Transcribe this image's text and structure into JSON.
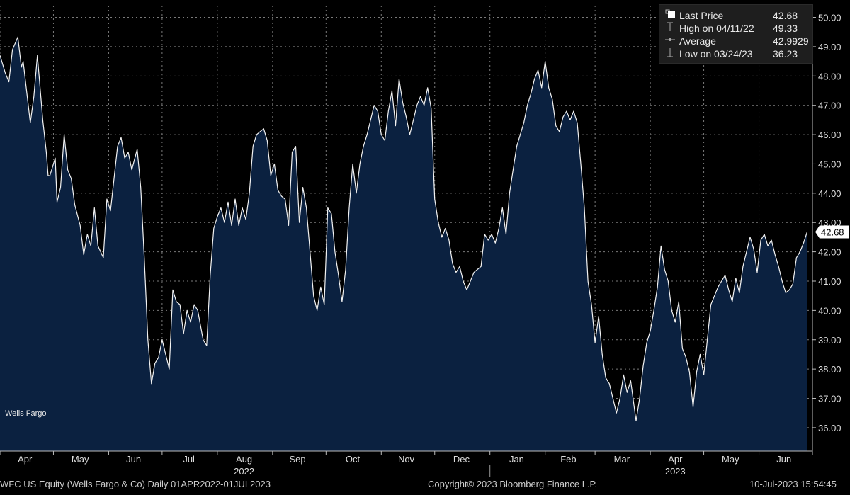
{
  "chart_data": {
    "type": "area",
    "series": [
      {
        "name": "Wells Fargo"
      }
    ],
    "ylim": [
      35.2,
      50.4
    ],
    "yticks": [
      "36.00",
      "37.00",
      "38.00",
      "39.00",
      "40.00",
      "41.00",
      "42.00",
      "43.00",
      "44.00",
      "45.00",
      "46.00",
      "47.00",
      "48.00",
      "49.00",
      "50.00"
    ],
    "xlim": [
      "2022-04-01",
      "2023-07-01"
    ],
    "month_labels": [
      {
        "label": "Apr",
        "date": "2022-04-15"
      },
      {
        "label": "May",
        "date": "2022-05-16"
      },
      {
        "label": "Jun",
        "date": "2022-06-15"
      },
      {
        "label": "Jul",
        "date": "2022-07-16"
      },
      {
        "label": "Aug",
        "date": "2022-08-16"
      },
      {
        "label": "Sep",
        "date": "2022-09-15"
      },
      {
        "label": "Oct",
        "date": "2022-10-16"
      },
      {
        "label": "Nov",
        "date": "2022-11-15"
      },
      {
        "label": "Dec",
        "date": "2022-12-16"
      },
      {
        "label": "Jan",
        "date": "2023-01-16"
      },
      {
        "label": "Feb",
        "date": "2023-02-14"
      },
      {
        "label": "Mar",
        "date": "2023-03-16"
      },
      {
        "label": "Apr",
        "date": "2023-04-15"
      },
      {
        "label": "May",
        "date": "2023-05-16"
      },
      {
        "label": "Jun",
        "date": "2023-06-15"
      }
    ],
    "year_labels": [
      {
        "label": "2022",
        "date": "2022-08-16"
      },
      {
        "label": "2023",
        "date": "2023-04-15"
      }
    ],
    "year_divider": "2023-01-01",
    "points": [
      [
        "2022-04-01",
        48.7
      ],
      [
        "2022-04-04",
        48.1
      ],
      [
        "2022-04-06",
        47.8
      ],
      [
        "2022-04-08",
        48.9
      ],
      [
        "2022-04-11",
        49.33
      ],
      [
        "2022-04-13",
        48.3
      ],
      [
        "2022-04-14",
        48.5
      ],
      [
        "2022-04-18",
        46.4
      ],
      [
        "2022-04-20",
        47.3
      ],
      [
        "2022-04-22",
        48.7
      ],
      [
        "2022-04-25",
        46.5
      ],
      [
        "2022-04-27",
        45.4
      ],
      [
        "2022-04-28",
        44.6
      ],
      [
        "2022-04-29",
        44.6
      ],
      [
        "2022-05-02",
        45.2
      ],
      [
        "2022-05-03",
        43.7
      ],
      [
        "2022-05-05",
        44.2
      ],
      [
        "2022-05-07",
        46.0
      ],
      [
        "2022-05-09",
        44.8
      ],
      [
        "2022-05-11",
        44.5
      ],
      [
        "2022-05-13",
        43.6
      ],
      [
        "2022-05-16",
        42.9
      ],
      [
        "2022-05-18",
        41.9
      ],
      [
        "2022-05-20",
        42.6
      ],
      [
        "2022-05-22",
        42.2
      ],
      [
        "2022-05-24",
        43.5
      ],
      [
        "2022-05-26",
        42.2
      ],
      [
        "2022-05-29",
        41.8
      ],
      [
        "2022-05-31",
        43.8
      ],
      [
        "2022-06-02",
        43.4
      ],
      [
        "2022-06-06",
        45.6
      ],
      [
        "2022-06-08",
        45.9
      ],
      [
        "2022-06-10",
        45.2
      ],
      [
        "2022-06-12",
        45.4
      ],
      [
        "2022-06-14",
        44.8
      ],
      [
        "2022-06-17",
        45.5
      ],
      [
        "2022-06-19",
        44.2
      ],
      [
        "2022-06-21",
        41.8
      ],
      [
        "2022-06-23",
        39.0
      ],
      [
        "2022-06-25",
        37.5
      ],
      [
        "2022-06-27",
        38.2
      ],
      [
        "2022-06-29",
        38.4
      ],
      [
        "2022-07-01",
        39.0
      ],
      [
        "2022-07-03",
        38.5
      ],
      [
        "2022-07-05",
        38.0
      ],
      [
        "2022-07-07",
        40.7
      ],
      [
        "2022-07-09",
        40.3
      ],
      [
        "2022-07-11",
        40.2
      ],
      [
        "2022-07-13",
        39.2
      ],
      [
        "2022-07-15",
        40.0
      ],
      [
        "2022-07-17",
        39.6
      ],
      [
        "2022-07-19",
        40.2
      ],
      [
        "2022-07-21",
        40.0
      ],
      [
        "2022-07-24",
        39.0
      ],
      [
        "2022-07-26",
        38.8
      ],
      [
        "2022-07-28",
        41.2
      ],
      [
        "2022-07-30",
        42.8
      ],
      [
        "2022-08-01",
        43.2
      ],
      [
        "2022-08-03",
        43.5
      ],
      [
        "2022-08-05",
        43.0
      ],
      [
        "2022-08-07",
        43.7
      ],
      [
        "2022-08-09",
        42.9
      ],
      [
        "2022-08-11",
        43.8
      ],
      [
        "2022-08-13",
        42.9
      ],
      [
        "2022-08-15",
        43.5
      ],
      [
        "2022-08-17",
        43.1
      ],
      [
        "2022-08-19",
        44.0
      ],
      [
        "2022-08-21",
        45.6
      ],
      [
        "2022-08-23",
        46.0
      ],
      [
        "2022-08-25",
        46.1
      ],
      [
        "2022-08-27",
        46.2
      ],
      [
        "2022-08-29",
        45.8
      ],
      [
        "2022-08-31",
        44.6
      ],
      [
        "2022-09-02",
        45.0
      ],
      [
        "2022-09-04",
        44.1
      ],
      [
        "2022-09-06",
        43.9
      ],
      [
        "2022-09-08",
        43.8
      ],
      [
        "2022-09-10",
        42.9
      ],
      [
        "2022-09-12",
        45.4
      ],
      [
        "2022-09-14",
        45.6
      ],
      [
        "2022-09-16",
        43.0
      ],
      [
        "2022-09-18",
        44.2
      ],
      [
        "2022-09-20",
        43.5
      ],
      [
        "2022-09-22",
        42.0
      ],
      [
        "2022-09-24",
        40.5
      ],
      [
        "2022-09-26",
        40.0
      ],
      [
        "2022-09-28",
        40.8
      ],
      [
        "2022-09-30",
        40.2
      ],
      [
        "2022-10-02",
        43.5
      ],
      [
        "2022-10-04",
        43.3
      ],
      [
        "2022-10-06",
        42.0
      ],
      [
        "2022-10-08",
        41.2
      ],
      [
        "2022-10-10",
        40.3
      ],
      [
        "2022-10-12",
        41.4
      ],
      [
        "2022-10-14",
        43.5
      ],
      [
        "2022-10-16",
        45.0
      ],
      [
        "2022-10-18",
        44.0
      ],
      [
        "2022-10-20",
        45.0
      ],
      [
        "2022-10-22",
        45.6
      ],
      [
        "2022-10-24",
        46.0
      ],
      [
        "2022-10-26",
        46.5
      ],
      [
        "2022-10-28",
        47.0
      ],
      [
        "2022-10-30",
        46.8
      ],
      [
        "2022-11-01",
        46.0
      ],
      [
        "2022-11-03",
        45.8
      ],
      [
        "2022-11-05",
        46.8
      ],
      [
        "2022-11-07",
        47.5
      ],
      [
        "2022-11-09",
        46.3
      ],
      [
        "2022-11-11",
        47.9
      ],
      [
        "2022-11-13",
        47.1
      ],
      [
        "2022-11-15",
        46.6
      ],
      [
        "2022-11-17",
        46.0
      ],
      [
        "2022-11-19",
        46.5
      ],
      [
        "2022-11-21",
        47.0
      ],
      [
        "2022-11-23",
        47.3
      ],
      [
        "2022-11-25",
        47.0
      ],
      [
        "2022-11-27",
        47.6
      ],
      [
        "2022-11-29",
        46.9
      ],
      [
        "2022-12-01",
        43.8
      ],
      [
        "2022-12-03",
        43.0
      ],
      [
        "2022-12-05",
        42.5
      ],
      [
        "2022-12-07",
        42.8
      ],
      [
        "2022-12-09",
        42.4
      ],
      [
        "2022-12-11",
        41.6
      ],
      [
        "2022-12-13",
        41.3
      ],
      [
        "2022-12-15",
        41.5
      ],
      [
        "2022-12-17",
        41.0
      ],
      [
        "2022-12-19",
        40.7
      ],
      [
        "2022-12-21",
        41.0
      ],
      [
        "2022-12-23",
        41.3
      ],
      [
        "2022-12-27",
        41.5
      ],
      [
        "2022-12-29",
        42.6
      ],
      [
        "2022-12-31",
        42.4
      ],
      [
        "2023-01-02",
        42.6
      ],
      [
        "2023-01-04",
        42.3
      ],
      [
        "2023-01-06",
        42.8
      ],
      [
        "2023-01-08",
        43.5
      ],
      [
        "2023-01-10",
        42.6
      ],
      [
        "2023-01-12",
        44.0
      ],
      [
        "2023-01-14",
        44.8
      ],
      [
        "2023-01-16",
        45.6
      ],
      [
        "2023-01-18",
        46.0
      ],
      [
        "2023-01-20",
        46.4
      ],
      [
        "2023-01-22",
        47.0
      ],
      [
        "2023-01-24",
        47.4
      ],
      [
        "2023-01-26",
        47.9
      ],
      [
        "2023-01-28",
        48.2
      ],
      [
        "2023-01-30",
        47.6
      ],
      [
        "2023-02-01",
        48.5
      ],
      [
        "2023-02-03",
        47.6
      ],
      [
        "2023-02-05",
        47.2
      ],
      [
        "2023-02-07",
        46.3
      ],
      [
        "2023-02-09",
        46.1
      ],
      [
        "2023-02-11",
        46.6
      ],
      [
        "2023-02-13",
        46.8
      ],
      [
        "2023-02-15",
        46.5
      ],
      [
        "2023-02-17",
        46.8
      ],
      [
        "2023-02-19",
        46.4
      ],
      [
        "2023-02-21",
        45.0
      ],
      [
        "2023-02-23",
        43.5
      ],
      [
        "2023-02-25",
        41.0
      ],
      [
        "2023-02-27",
        40.2
      ],
      [
        "2023-03-01",
        38.9
      ],
      [
        "2023-03-03",
        39.8
      ],
      [
        "2023-03-05",
        38.5
      ],
      [
        "2023-03-07",
        37.7
      ],
      [
        "2023-03-09",
        37.5
      ],
      [
        "2023-03-11",
        37.0
      ],
      [
        "2023-03-13",
        36.5
      ],
      [
        "2023-03-15",
        37.0
      ],
      [
        "2023-03-17",
        37.8
      ],
      [
        "2023-03-19",
        37.2
      ],
      [
        "2023-03-21",
        37.6
      ],
      [
        "2023-03-24",
        36.23
      ],
      [
        "2023-03-26",
        37.0
      ],
      [
        "2023-03-28",
        38.1
      ],
      [
        "2023-03-30",
        38.9
      ],
      [
        "2023-04-01",
        39.3
      ],
      [
        "2023-04-03",
        40.0
      ],
      [
        "2023-04-05",
        40.8
      ],
      [
        "2023-04-07",
        42.2
      ],
      [
        "2023-04-09",
        41.4
      ],
      [
        "2023-04-11",
        41.0
      ],
      [
        "2023-04-13",
        40.0
      ],
      [
        "2023-04-15",
        39.6
      ],
      [
        "2023-04-17",
        40.3
      ],
      [
        "2023-04-19",
        38.7
      ],
      [
        "2023-04-21",
        38.4
      ],
      [
        "2023-04-23",
        37.9
      ],
      [
        "2023-04-25",
        36.7
      ],
      [
        "2023-04-27",
        37.9
      ],
      [
        "2023-04-29",
        38.5
      ],
      [
        "2023-05-01",
        37.8
      ],
      [
        "2023-05-03",
        39.0
      ],
      [
        "2023-05-05",
        40.2
      ],
      [
        "2023-05-07",
        40.5
      ],
      [
        "2023-05-09",
        40.8
      ],
      [
        "2023-05-11",
        41.0
      ],
      [
        "2023-05-13",
        41.2
      ],
      [
        "2023-05-15",
        40.7
      ],
      [
        "2023-05-17",
        40.3
      ],
      [
        "2023-05-19",
        41.1
      ],
      [
        "2023-05-21",
        40.6
      ],
      [
        "2023-05-23",
        41.5
      ],
      [
        "2023-05-25",
        42.0
      ],
      [
        "2023-05-27",
        42.5
      ],
      [
        "2023-05-29",
        42.1
      ],
      [
        "2023-05-31",
        41.3
      ],
      [
        "2023-06-02",
        42.4
      ],
      [
        "2023-06-04",
        42.6
      ],
      [
        "2023-06-06",
        42.2
      ],
      [
        "2023-06-08",
        42.4
      ],
      [
        "2023-06-10",
        41.9
      ],
      [
        "2023-06-12",
        41.5
      ],
      [
        "2023-06-14",
        41.0
      ],
      [
        "2023-06-16",
        40.6
      ],
      [
        "2023-06-18",
        40.7
      ],
      [
        "2023-06-20",
        40.9
      ],
      [
        "2023-06-22",
        41.8
      ],
      [
        "2023-06-24",
        42.0
      ],
      [
        "2023-06-26",
        42.3
      ],
      [
        "2023-06-28",
        42.68
      ]
    ],
    "last_value_label": "42.68",
    "series_label": "Wells Fargo"
  },
  "legend": [
    {
      "marker": "square",
      "label": "Last Price",
      "value": "42.68"
    },
    {
      "marker": "high",
      "label": "High on 04/11/22",
      "value": "49.33"
    },
    {
      "marker": "average",
      "label": "Average",
      "value": "42.9929"
    },
    {
      "marker": "low",
      "label": "Low on 03/24/23",
      "value": "36.23"
    }
  ],
  "footer": {
    "left": "WFC US Equity (Wells Fargo & Co)  Daily 01APR2022-01JUL2023",
    "center": "Copyright© 2023 Bloomberg Finance L.P.",
    "right": "10-Jul-2023 15:54:45"
  },
  "colors": {
    "background": "#000000",
    "fill": "#0b2140",
    "line": "#f2f2f2",
    "grid": "#7a7a7a"
  }
}
